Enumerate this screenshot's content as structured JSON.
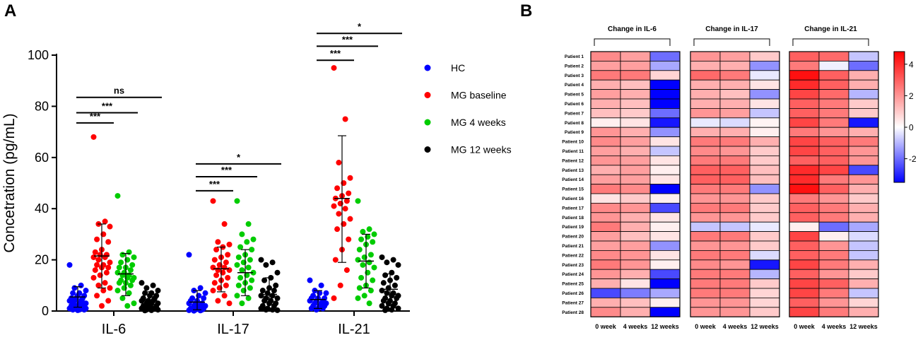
{
  "chart_data": [
    {
      "panel": "A",
      "type": "scatter",
      "ylabel": "Concetration (pg/mL)",
      "ylim": [
        0,
        100
      ],
      "yticks": [
        0,
        20,
        40,
        60,
        80,
        100
      ],
      "categories": [
        "IL-6",
        "IL-17",
        "IL-21"
      ],
      "series": [
        {
          "name": "HC",
          "color": "#0000ff"
        },
        {
          "name": "MG baseline",
          "color": "#ff0000"
        },
        {
          "name": "MG 4 weeks",
          "color": "#00cc00"
        },
        {
          "name": "MG 12 weeks",
          "color": "#000000"
        }
      ],
      "groups": [
        {
          "category": "IL-6",
          "summary": [
            {
              "mean": 5.5,
              "sd_low": 1.5,
              "sd_high": 9.5
            },
            {
              "mean": 21.5,
              "sd_low": 9,
              "sd_high": 34
            },
            {
              "mean": 14.5,
              "sd_low": 6,
              "sd_high": 22.5
            },
            {
              "mean": 4,
              "sd_low": 0.5,
              "sd_high": 7.5
            }
          ],
          "points": [
            [
              18,
              10,
              9,
              8,
              7,
              7,
              6,
              6,
              5,
              5,
              5,
              4,
              4,
              4,
              3,
              3,
              3,
              3,
              2,
              2,
              2,
              2,
              1,
              1,
              1,
              1,
              0.5,
              0.5,
              0.5,
              0.3
            ],
            [
              68,
              35,
              34,
              33,
              30,
              28,
              27,
              24,
              23,
              22,
              22,
              21,
              21,
              20,
              19,
              18,
              18,
              17,
              17,
              16,
              15,
              14,
              13,
              11,
              10,
              9,
              8,
              6,
              4,
              2
            ],
            [
              45,
              23,
              22,
              21,
              20,
              19,
              18,
              17,
              17,
              16,
              15,
              15,
              14,
              14,
              13,
              13,
              12,
              12,
              11,
              11,
              10,
              9,
              8,
              7,
              5,
              3,
              2
            ],
            [
              11,
              10,
              9,
              8,
              7,
              7,
              6,
              6,
              5,
              5,
              4,
              4,
              4,
              3,
              3,
              3,
              2,
              2,
              2,
              2,
              1,
              1,
              1,
              1,
              0.5,
              0.5,
              0.3,
              0.2
            ]
          ]
        },
        {
          "category": "IL-17",
          "summary": [
            {
              "mean": 3.5,
              "sd_low": 0.5,
              "sd_high": 8
            },
            {
              "mean": 16.5,
              "sd_low": 7.5,
              "sd_high": 25
            },
            {
              "mean": 15,
              "sd_low": 6,
              "sd_high": 24
            },
            {
              "mean": 6.5,
              "sd_low": 0.5,
              "sd_high": 13
            }
          ],
          "points": [
            [
              22,
              9,
              8,
              7,
              6,
              5,
              5,
              4,
              4,
              3,
              3,
              3,
              2,
              2,
              2,
              2,
              1,
              1,
              1,
              1,
              0.5,
              0.5,
              0.3,
              0.2,
              0.1
            ],
            [
              43,
              34,
              27,
              26,
              25,
              24,
              22,
              21,
              20,
              19,
              18,
              17,
              17,
              16,
              16,
              15,
              14,
              13,
              12,
              11,
              10,
              9,
              8,
              6,
              4,
              3
            ],
            [
              43,
              34,
              30,
              28,
              27,
              25,
              24,
              22,
              21,
              20,
              19,
              18,
              17,
              16,
              15,
              14,
              13,
              12,
              11,
              10,
              9,
              8,
              6,
              5,
              3
            ],
            [
              20,
              19,
              18,
              15,
              13,
              12,
              10,
              9,
              8,
              8,
              7,
              6,
              6,
              5,
              5,
              4,
              4,
              3,
              3,
              2,
              2,
              1,
              1,
              0.5,
              0.5,
              0.3
            ]
          ]
        },
        {
          "category": "IL-21",
          "summary": [
            {
              "mean": 4.5,
              "sd_low": 1,
              "sd_high": 8
            },
            {
              "mean": 44,
              "sd_low": 19,
              "sd_high": 68.5
            },
            {
              "mean": 19.5,
              "sd_low": 9,
              "sd_high": 30
            },
            {
              "mean": 8.5,
              "sd_low": 2,
              "sd_high": 14.5
            }
          ],
          "points": [
            [
              12,
              10,
              8,
              7,
              7,
              6,
              5,
              5,
              5,
              4,
              4,
              4,
              3,
              3,
              3,
              2,
              2,
              2,
              1,
              1,
              1,
              0.5
            ],
            [
              95,
              75,
              58,
              52,
              50,
              48,
              46,
              45,
              44,
              43,
              42,
              41,
              40,
              38,
              36,
              34,
              32,
              28,
              24,
              20,
              16,
              10,
              5
            ],
            [
              43,
              32,
              31,
              30,
              29,
              28,
              27,
              26,
              24,
              22,
              21,
              20,
              19,
              18,
              17,
              15,
              13,
              12,
              10,
              9,
              8,
              6,
              5,
              3
            ],
            [
              21,
              20,
              19,
              18,
              15,
              14,
              13,
              12,
              11,
              10,
              9,
              8,
              7,
              7,
              6,
              6,
              5,
              5,
              4,
              4,
              3,
              3,
              2,
              2,
              1,
              1,
              0.5,
              0.3
            ]
          ]
        }
      ],
      "significance": [
        {
          "category": "IL-6",
          "label": "***",
          "from": 0,
          "to": 1,
          "y": 73.5
        },
        {
          "category": "IL-6",
          "label": "***",
          "from": 0,
          "to": 2,
          "y": 77.5
        },
        {
          "category": "IL-6",
          "label": "ns",
          "from": 0,
          "to": 3,
          "y": 83.5
        },
        {
          "category": "IL-17",
          "label": "***",
          "from": 0,
          "to": 1,
          "y": 47
        },
        {
          "category": "IL-17",
          "label": "***",
          "from": 0,
          "to": 2,
          "y": 52.5
        },
        {
          "category": "IL-17",
          "label": "*",
          "from": 0,
          "to": 3,
          "y": 57.5
        },
        {
          "category": "IL-21",
          "label": "***",
          "from": 0,
          "to": 1,
          "y": 98
        },
        {
          "category": "IL-21",
          "label": "***",
          "from": 0,
          "to": 2,
          "y": 103.5
        },
        {
          "category": "IL-21",
          "label": "*",
          "from": 0,
          "to": 3,
          "y": 108.5
        }
      ]
    },
    {
      "panel": "B",
      "type": "heatmap",
      "groups": [
        "Change in IL-6",
        "Change in IL-17",
        "Change in IL-21"
      ],
      "columns": [
        "0 week",
        "4 weeks",
        "12 weeks"
      ],
      "rows": [
        "Patient 1",
        "Patient 2",
        "Patient 3",
        "Patient 4",
        "Patient 5",
        "Patient 6",
        "Patient 7",
        "Patient 8",
        "Patient 9",
        "Patient 10",
        "Patient 11",
        "Patient 12",
        "Patient 13",
        "Patient 14",
        "Patient 15",
        "Patient 16",
        "Patient 17",
        "Patient 18",
        "Patient 19",
        "Patient 20",
        "Patient 21",
        "Patient 22",
        "Patient 23",
        "Patient 24",
        "Patient 25",
        "Patient 26",
        "Patient 27",
        "Patient 28"
      ],
      "colorbar": {
        "min": -3.5,
        "max": 4.8,
        "ticks": [
          4,
          2,
          0,
          -2
        ]
      },
      "values": {
        "IL-6": [
          [
            2.2,
            1.8,
            -2.0
          ],
          [
            1.8,
            1.8,
            -1.2
          ],
          [
            2.5,
            2.5,
            0.8
          ],
          [
            1.5,
            1.2,
            -3.5
          ],
          [
            1.8,
            1.5,
            -3.5
          ],
          [
            1.5,
            1.2,
            -3.5
          ],
          [
            1.2,
            1.0,
            -2.0
          ],
          [
            0.3,
            0.5,
            -3.2
          ],
          [
            2.0,
            1.5,
            -1.5
          ],
          [
            2.2,
            1.8,
            0.5
          ],
          [
            1.8,
            1.5,
            -0.8
          ],
          [
            2.0,
            1.8,
            0.5
          ],
          [
            1.5,
            1.8,
            0.3
          ],
          [
            1.8,
            1.8,
            0.5
          ],
          [
            2.5,
            2.2,
            -3.5
          ],
          [
            0.5,
            1.0,
            0.3
          ],
          [
            2.2,
            2.0,
            -2.5
          ],
          [
            2.0,
            1.5,
            0.5
          ],
          [
            2.5,
            1.5,
            0.3
          ],
          [
            1.8,
            1.2,
            0.5
          ],
          [
            1.8,
            1.8,
            -1.5
          ],
          [
            2.2,
            2.0,
            0.5
          ],
          [
            2.5,
            2.0,
            0.3
          ],
          [
            2.0,
            1.5,
            -2.5
          ],
          [
            1.5,
            0.5,
            -3.5
          ],
          [
            -2.5,
            -1.8,
            -1.2
          ],
          [
            1.5,
            1.2,
            0.3
          ],
          [
            2.2,
            1.5,
            -3.5
          ]
        ],
        "IL-17": [
          [
            2.0,
            1.8,
            1.0
          ],
          [
            1.5,
            1.5,
            -1.5
          ],
          [
            2.8,
            2.5,
            -0.3
          ],
          [
            1.5,
            1.5,
            0.5
          ],
          [
            1.5,
            1.2,
            -1.5
          ],
          [
            1.5,
            1.5,
            0.5
          ],
          [
            2.0,
            1.8,
            -0.8
          ],
          [
            -0.3,
            -0.5,
            0.2
          ],
          [
            1.5,
            1.5,
            0.3
          ],
          [
            2.5,
            2.5,
            1.5
          ],
          [
            2.2,
            2.0,
            1.0
          ],
          [
            2.5,
            2.5,
            1.0
          ],
          [
            3.0,
            3.0,
            1.2
          ],
          [
            3.0,
            3.0,
            1.2
          ],
          [
            2.5,
            2.5,
            -1.5
          ],
          [
            2.0,
            2.0,
            1.0
          ],
          [
            2.5,
            2.5,
            1.0
          ],
          [
            2.0,
            2.0,
            1.0
          ],
          [
            -0.8,
            -0.8,
            -0.3
          ],
          [
            2.5,
            2.5,
            1.0
          ],
          [
            2.0,
            2.0,
            1.0
          ],
          [
            2.5,
            2.5,
            -0.5
          ],
          [
            2.2,
            2.0,
            -3.2
          ],
          [
            2.5,
            2.5,
            -1.0
          ],
          [
            2.5,
            2.5,
            1.0
          ],
          [
            2.5,
            2.5,
            0.8
          ],
          [
            2.0,
            2.0,
            0.8
          ],
          [
            2.0,
            2.0,
            1.0
          ]
        ],
        "IL-21": [
          [
            3.0,
            2.8,
            -0.8
          ],
          [
            2.5,
            -0.2,
            -2.0
          ],
          [
            4.5,
            3.0,
            1.5
          ],
          [
            4.0,
            3.0,
            1.5
          ],
          [
            3.5,
            2.8,
            -1.0
          ],
          [
            3.0,
            2.5,
            1.0
          ],
          [
            3.0,
            2.5,
            1.0
          ],
          [
            3.5,
            2.5,
            -3.2
          ],
          [
            2.5,
            2.0,
            1.5
          ],
          [
            3.5,
            3.0,
            2.5
          ],
          [
            3.5,
            3.0,
            2.0
          ],
          [
            3.0,
            3.0,
            2.0
          ],
          [
            4.0,
            3.5,
            -2.5
          ],
          [
            4.0,
            2.5,
            2.0
          ],
          [
            4.5,
            3.0,
            1.5
          ],
          [
            2.5,
            2.0,
            1.0
          ],
          [
            3.0,
            2.5,
            1.5
          ],
          [
            3.0,
            2.5,
            1.5
          ],
          [
            0.3,
            -2.0,
            -1.2
          ],
          [
            3.5,
            0.3,
            -0.5
          ],
          [
            3.0,
            2.0,
            -0.8
          ],
          [
            3.0,
            2.5,
            -0.8
          ],
          [
            3.5,
            2.5,
            1.5
          ],
          [
            3.0,
            2.0,
            1.0
          ],
          [
            3.5,
            3.0,
            1.5
          ],
          [
            3.5,
            2.5,
            -0.8
          ],
          [
            3.0,
            2.0,
            0.8
          ],
          [
            3.5,
            2.5,
            1.5
          ]
        ]
      }
    }
  ],
  "labels": {
    "panel_a": "A",
    "panel_b": "B"
  }
}
